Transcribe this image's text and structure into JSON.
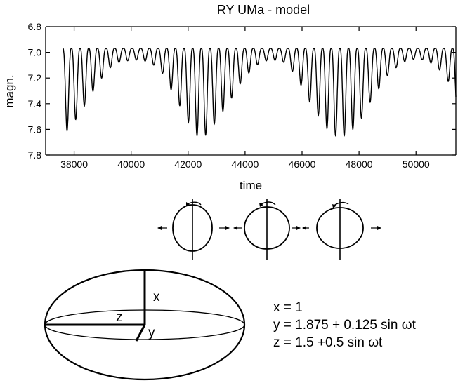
{
  "chart_data": {
    "type": "line",
    "title": "RY UMa - model",
    "xlabel": "time",
    "ylabel": "magn.",
    "xlim": [
      37000,
      51400
    ],
    "ylim": [
      6.8,
      7.8
    ],
    "y_inverted": true,
    "grid": false,
    "xticks": [
      "38000",
      "40000",
      "42000",
      "44000",
      "46000",
      "48000",
      "50000"
    ],
    "yticks": [
      "6.8",
      "7.0",
      "7.2",
      "7.4",
      "7.6",
      "7.8"
    ],
    "series": [
      {
        "pulsation_period": 304,
        "brightest_magnitude": 6.97,
        "beat_period": 5150,
        "beat_maxima_time": [
          37600,
          42370,
          47420
        ],
        "x": [
          37600,
          37870,
          38200,
          38530,
          38900,
          39200,
          39550,
          40000,
          40400,
          41000,
          41300,
          41600,
          41900,
          42200,
          42370,
          42650,
          42950,
          43250,
          43600,
          43900,
          44300,
          44600,
          45000,
          45400,
          45700,
          46000,
          46300,
          46650,
          46950,
          47250,
          47420,
          47700,
          48000,
          48300,
          48650,
          49000,
          49400,
          49700,
          50100,
          50500,
          50900,
          51200,
          51400
        ],
        "y": [
          7.65,
          7.58,
          7.48,
          7.35,
          7.22,
          7.13,
          7.08,
          7.06,
          7.06,
          7.12,
          7.25,
          7.37,
          7.5,
          7.63,
          7.66,
          7.64,
          7.55,
          7.45,
          7.33,
          7.22,
          7.12,
          7.07,
          7.06,
          7.08,
          7.16,
          7.27,
          7.4,
          7.52,
          7.62,
          7.66,
          7.66,
          7.62,
          7.55,
          7.42,
          7.3,
          7.18,
          7.1,
          7.06,
          7.05,
          7.08,
          7.15,
          7.25,
          7.42
        ]
      }
    ]
  },
  "diagram": {
    "ellipse_labels": {
      "x": "x",
      "y": "y",
      "z": "z"
    },
    "equations": [
      "x = 1",
      "y = 1.875 + 0.125 sin ωt",
      "z = 1.5 +0.5 sin ωt"
    ]
  }
}
